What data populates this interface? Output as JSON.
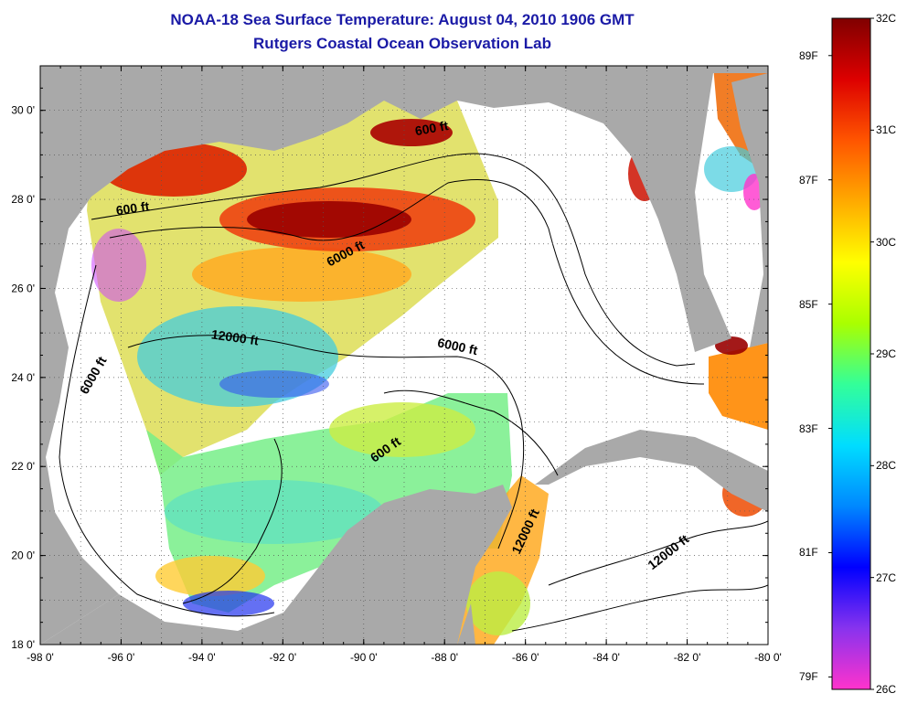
{
  "title": {
    "line1": "NOAA-18 Sea Surface Temperature:  August 04, 2010 1906 GMT",
    "line2": "Rutgers Coastal Ocean Observation Lab"
  },
  "colors": {
    "title": "#1a1aa6",
    "land": "#a9a9a9",
    "no_data": "#ffffff",
    "contour": "#000000"
  },
  "map": {
    "lon_range": [
      -98,
      -80
    ],
    "lat_range": [
      18,
      31
    ],
    "x_ticks": [
      -98,
      -96,
      -94,
      -92,
      -90,
      -88,
      -86,
      -84,
      -82,
      -80
    ],
    "x_tick_labels": [
      "-98 0'",
      "-96 0'",
      "-94 0'",
      "-92 0'",
      "-90 0'",
      "-88 0'",
      "-86 0'",
      "-84 0'",
      "-82 0'",
      "-80 0'"
    ],
    "y_ticks": [
      18,
      20,
      22,
      24,
      26,
      28,
      30
    ],
    "y_tick_labels": [
      "18 0'",
      "20 0'",
      "22 0'",
      "24 0'",
      "26 0'",
      "28 0'",
      "30 0'"
    ],
    "grid": "dotted",
    "contour_labels": [
      {
        "text": "600 ft",
        "lon": -95.7,
        "lat": 27.7,
        "angle": -8
      },
      {
        "text": "600 ft",
        "lon": -88.3,
        "lat": 29.5,
        "angle": -10
      },
      {
        "text": "6000 ft",
        "lon": -90.4,
        "lat": 26.7,
        "angle": -28
      },
      {
        "text": "12000 ft",
        "lon": -93.2,
        "lat": 24.8,
        "angle": 8
      },
      {
        "text": "6000 ft",
        "lon": -87.7,
        "lat": 24.6,
        "angle": 12
      },
      {
        "text": "6000 ft",
        "lon": -96.6,
        "lat": 24.0,
        "angle": -60
      },
      {
        "text": "600 ft",
        "lon": -89.4,
        "lat": 22.3,
        "angle": -35
      },
      {
        "text": "12000 ft",
        "lon": -85.9,
        "lat": 20.5,
        "angle": -65
      },
      {
        "text": "12000 ft",
        "lon": -82.4,
        "lat": 20.0,
        "angle": -38
      }
    ]
  },
  "colorbar": {
    "min_c": 26,
    "max_c": 32,
    "celsius_labels": [
      "32C",
      "31C",
      "30C",
      "29C",
      "28C",
      "27C",
      "26C"
    ],
    "celsius_values": [
      32,
      31,
      30,
      29,
      28,
      27,
      26
    ],
    "fahrenheit_labels": [
      "89F",
      "87F",
      "85F",
      "83F",
      "81F",
      "79F"
    ],
    "fahrenheit_values": [
      89,
      87,
      85,
      83,
      81,
      79
    ],
    "stops": [
      "#ff33cc",
      "#8833ee",
      "#0000ff",
      "#0088ff",
      "#00ddff",
      "#33ff99",
      "#aaff00",
      "#ffff00",
      "#ffaa00",
      "#ff5500",
      "#dd0000",
      "#800000"
    ]
  }
}
